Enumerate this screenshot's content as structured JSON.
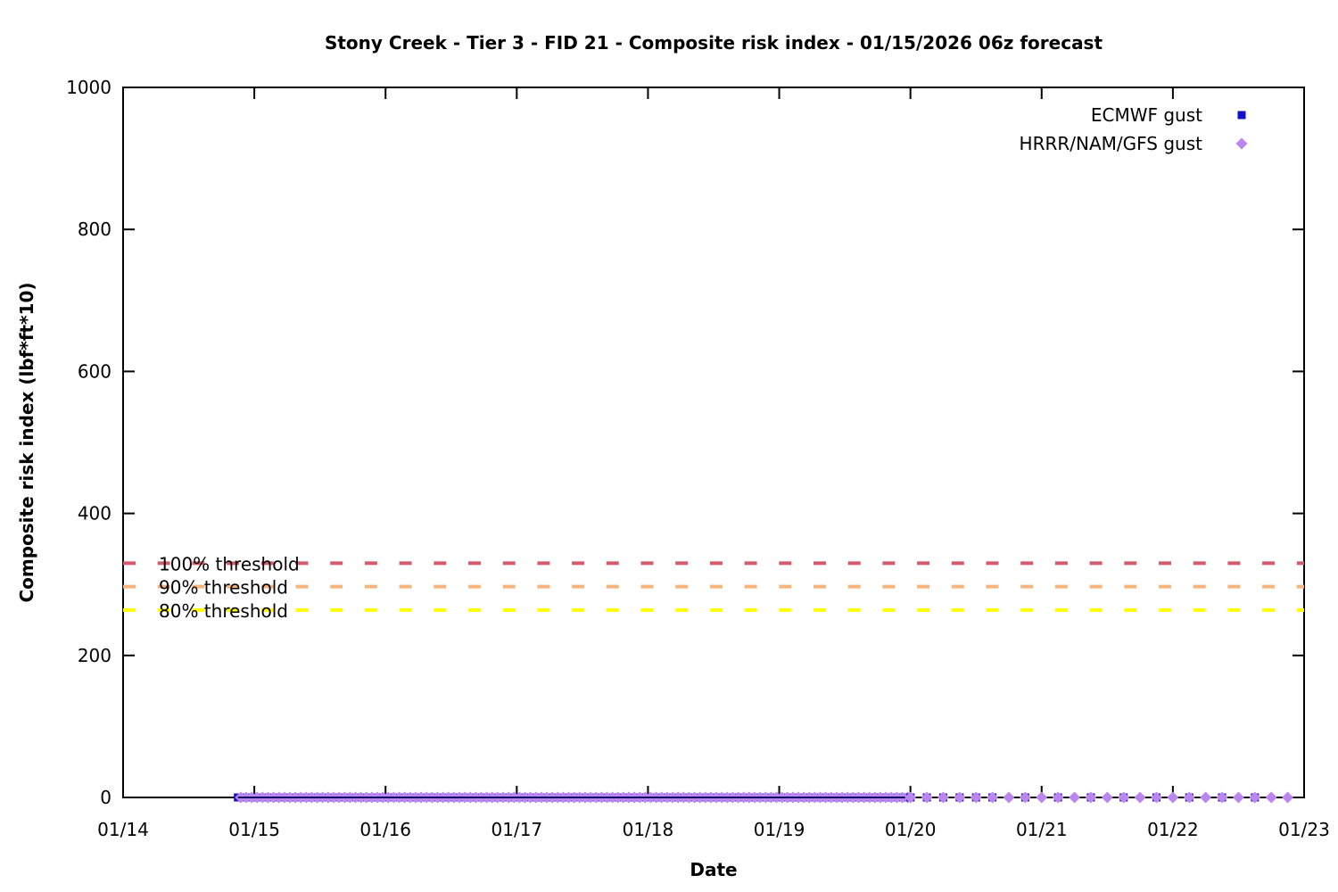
{
  "chart_data": {
    "type": "scatter",
    "title": "Stony Creek - Tier 3 - FID 21 - Composite risk index - 01/15/2026 06z forecast",
    "xlabel": "Date",
    "ylabel": "Composite risk index (lbf*ft*10)",
    "x_tick_labels": [
      "01/14",
      "01/15",
      "01/16",
      "01/17",
      "01/18",
      "01/19",
      "01/20",
      "01/21",
      "01/22",
      "01/23"
    ],
    "x_range_days": [
      0,
      9
    ],
    "y_ticks": [
      0,
      200,
      400,
      600,
      800,
      1000
    ],
    "ylim": [
      0,
      1000
    ],
    "grid": false,
    "legend_position": "top-right-inside",
    "thresholds": [
      {
        "label": "100% threshold",
        "value": 330,
        "color": "#d35b6b",
        "style": "dashed"
      },
      {
        "label": "90% threshold",
        "value": 297,
        "color": "#f7b57c",
        "style": "dashed"
      },
      {
        "label": "80% threshold",
        "value": 264,
        "color": "#ffff00",
        "style": "dashed"
      }
    ],
    "series": [
      {
        "name": "ECMWF gust",
        "marker": "square",
        "color": "#1111cc",
        "marker_size": 9,
        "value": 0,
        "segments": [
          {
            "start": "01/14 21:00",
            "end": "01/20 00:00",
            "step_hours": 1,
            "start_day": 0.875,
            "end_day": 6.0,
            "dense": true
          },
          {
            "start": "01/20 00:00",
            "end": "01/20 15:00",
            "step_hours": 3,
            "start_day": 6.0,
            "end_day": 6.625
          },
          {
            "start": "01/20 21:00",
            "end": "01/22 15:00",
            "step_hours": 6,
            "start_day": 6.875,
            "end_day": 8.625
          }
        ]
      },
      {
        "name": "HRRR/NAM/GFS gust",
        "marker": "diamond",
        "color": "#bb86ee",
        "marker_size": 13,
        "value": 0,
        "segments": [
          {
            "start": "01/14 21:00",
            "end": "01/20 00:00",
            "step_hours": 1,
            "start_day": 0.875,
            "end_day": 6.0,
            "dense": true
          },
          {
            "start": "01/20 00:00",
            "end": "01/22 21:00",
            "step_hours": 3,
            "start_day": 6.0,
            "end_day": 8.875
          }
        ]
      }
    ]
  }
}
